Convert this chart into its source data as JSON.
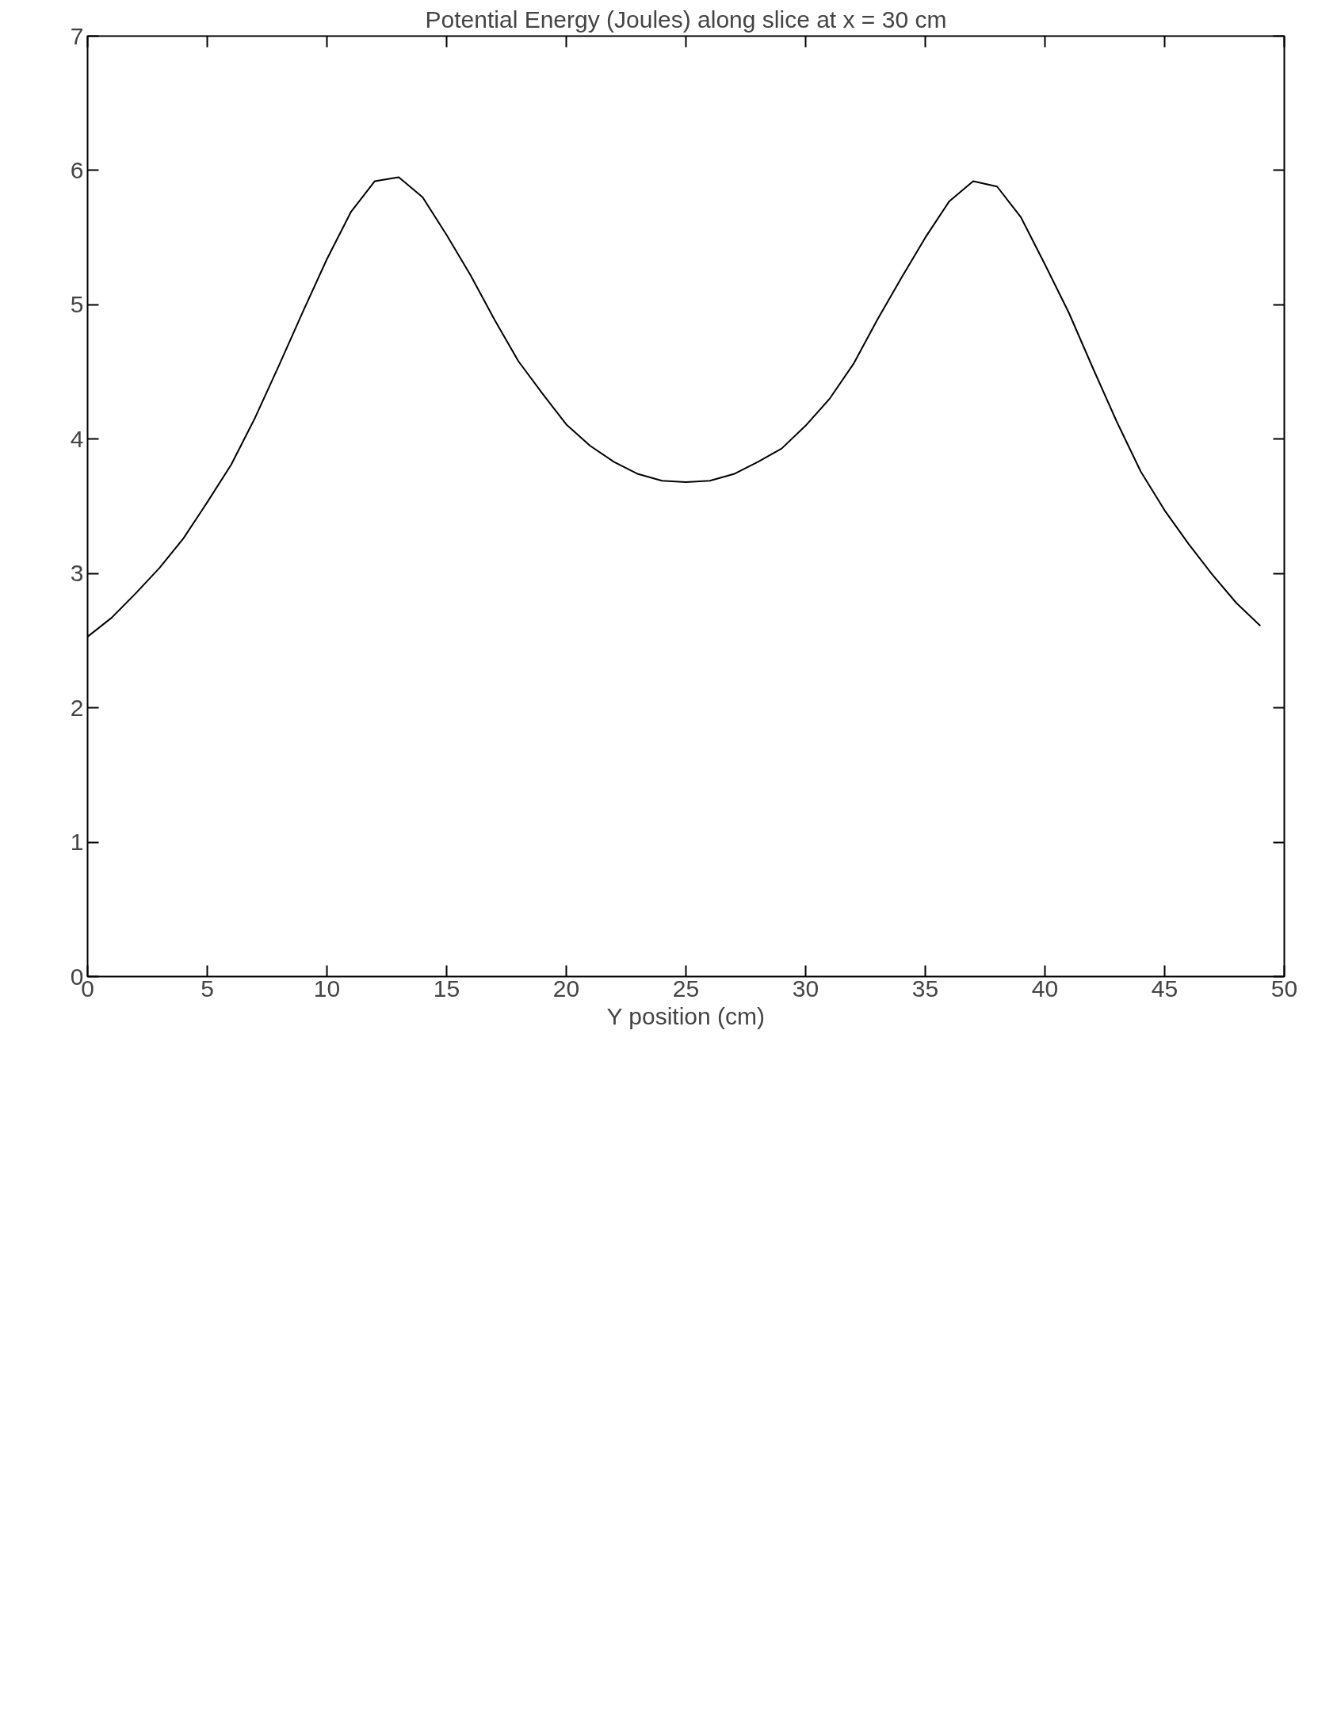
{
  "chart_data": {
    "type": "line",
    "title": "Potential Energy (Joules) along slice at x = 30 cm",
    "xlabel": "Y position (cm)",
    "x": [
      0,
      1,
      2,
      3,
      4,
      5,
      6,
      7,
      8,
      9,
      10,
      11,
      12,
      13,
      14,
      15,
      16,
      17,
      18,
      19,
      20,
      21,
      22,
      23,
      24,
      25,
      26,
      27,
      28,
      29,
      30,
      31,
      32,
      33,
      34,
      35,
      36,
      37,
      38,
      39,
      40,
      41,
      42,
      43,
      44,
      45,
      46,
      47,
      48,
      49
    ],
    "series": [
      {
        "color": "#000000",
        "values": [
          2.53,
          2.67,
          2.85,
          3.04,
          3.26,
          3.53,
          3.81,
          4.16,
          4.55,
          4.95,
          5.34,
          5.69,
          5.92,
          5.95,
          5.8,
          5.52,
          5.22,
          4.89,
          4.58,
          4.34,
          4.11,
          3.95,
          3.83,
          3.74,
          3.69,
          3.68,
          3.69,
          3.74,
          3.83,
          3.93,
          4.1,
          4.3,
          4.56,
          4.89,
          5.2,
          5.5,
          5.77,
          5.92,
          5.88,
          5.65,
          5.3,
          4.94,
          4.53,
          4.13,
          3.76,
          3.47,
          3.22,
          2.99,
          2.78,
          2.61
        ]
      }
    ],
    "xlim": [
      0,
      50
    ],
    "xticks": [
      0,
      5,
      10,
      15,
      20,
      25,
      30,
      35,
      40,
      45,
      50
    ],
    "ylim": [
      0,
      7
    ],
    "yticks": [
      0,
      1,
      2,
      3,
      4,
      5,
      6,
      7
    ],
    "line_style": "solid",
    "marker": "none"
  }
}
